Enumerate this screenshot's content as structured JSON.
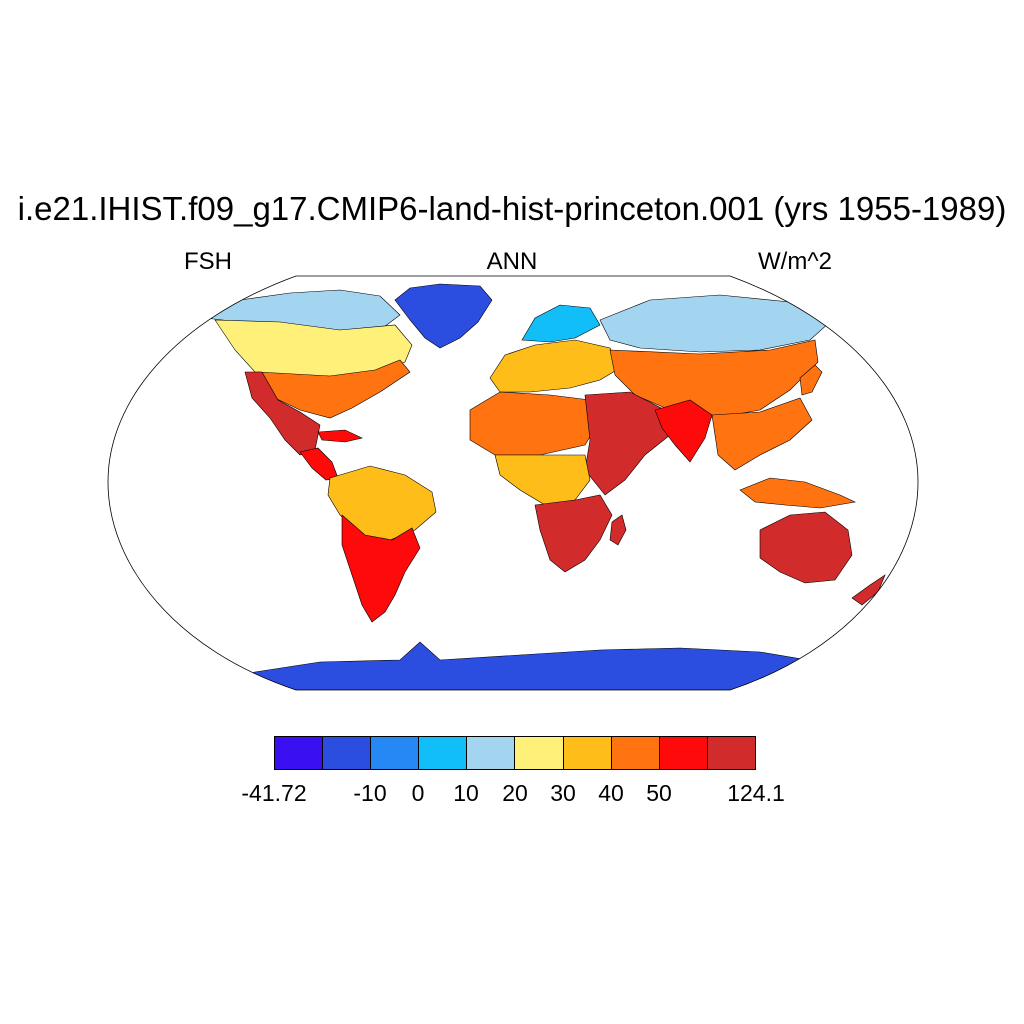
{
  "title": "i.e21.IHIST.f09_g17.CMIP6-land-hist-princeton.001 (yrs 1955-1989)",
  "subtitles": {
    "left": "FSH",
    "center": "ANN",
    "right": "W/m^2"
  },
  "projection": "Robinson",
  "colors": {
    "bins": [
      "#3a10f2",
      "#2c4ee0",
      "#2588f5",
      "#12bef7",
      "#a3d4f0",
      "#fff07a",
      "#ffbd1a",
      "#ff7310",
      "#fe0a0a",
      "#d22b2c"
    ],
    "coastline": "#000000",
    "background": "#ffffff"
  },
  "colorbar": {
    "labels": [
      "-41.72",
      "-10",
      "0",
      "10",
      "20",
      "30",
      "40",
      "50",
      "124.1"
    ]
  },
  "regions": [
    {
      "name": "Greenland",
      "bin": 1
    },
    {
      "name": "Canadian Arctic",
      "bin": 4
    },
    {
      "name": "Canada",
      "bin": 5
    },
    {
      "name": "United States",
      "bin": 7
    },
    {
      "name": "Southwest US / Mexico",
      "bin": 9
    },
    {
      "name": "Central America",
      "bin": 8
    },
    {
      "name": "Amazon",
      "bin": 6
    },
    {
      "name": "Southern South America",
      "bin": 8
    },
    {
      "name": "Scandinavia",
      "bin": 3
    },
    {
      "name": "Europe",
      "bin": 6
    },
    {
      "name": "Siberia",
      "bin": 4
    },
    {
      "name": "Central Asia",
      "bin": 7
    },
    {
      "name": "Sahara",
      "bin": 7
    },
    {
      "name": "East Africa / Arabia",
      "bin": 9
    },
    {
      "name": "Central Africa",
      "bin": 6
    },
    {
      "name": "Southern Africa",
      "bin": 9
    },
    {
      "name": "India",
      "bin": 8
    },
    {
      "name": "Southeast Asia",
      "bin": 7
    },
    {
      "name": "Australia",
      "bin": 9
    },
    {
      "name": "Antarctica",
      "bin": 1
    }
  ]
}
